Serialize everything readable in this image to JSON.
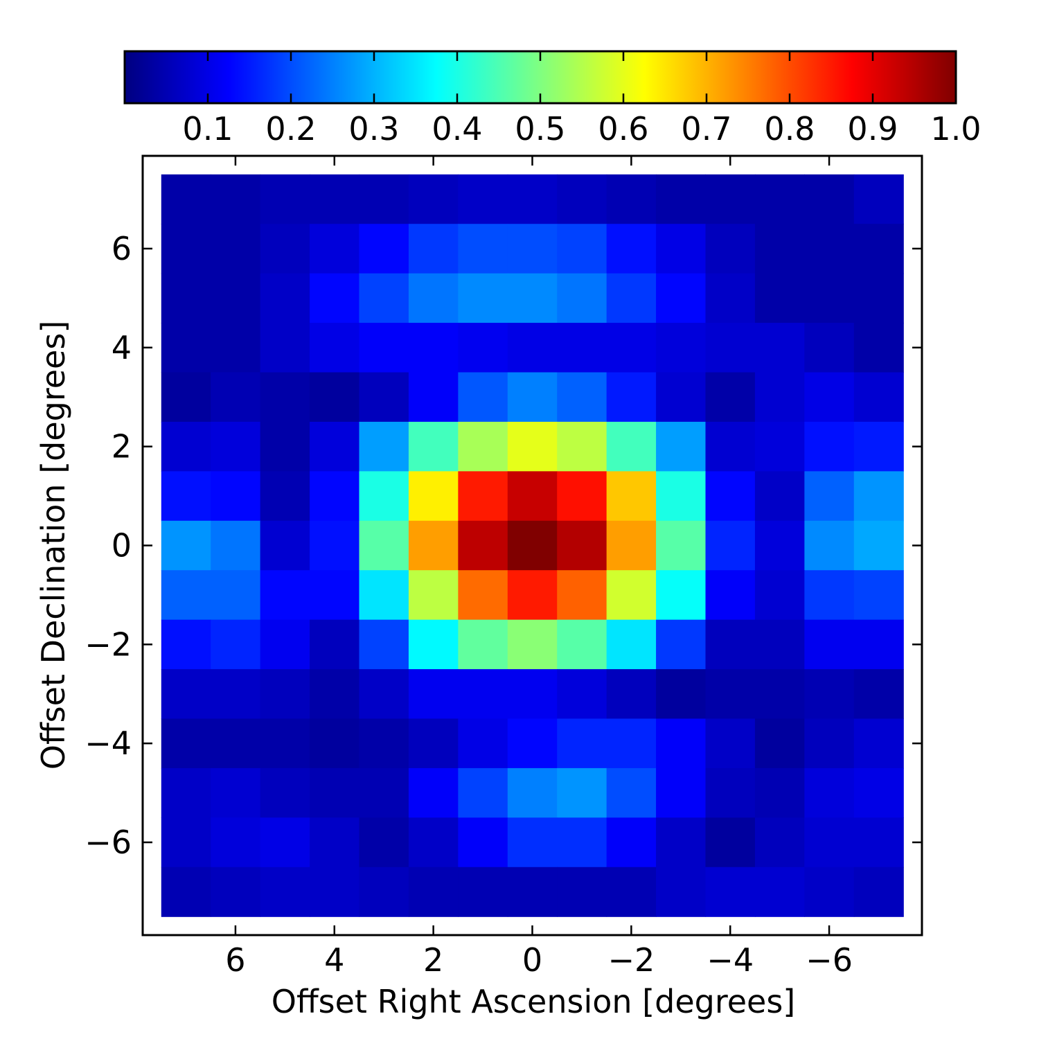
{
  "chart_data": {
    "type": "heatmap",
    "title": "",
    "xlabel": "Offset Right Ascension [degrees]",
    "ylabel": "Offset Declination [degrees]",
    "x_axis_inverted": true,
    "xlim": [
      7.875,
      -7.875
    ],
    "ylim": [
      -7.875,
      7.875
    ],
    "x_ticks": [
      6,
      4,
      2,
      0,
      -2,
      -4,
      -6
    ],
    "x_tick_labels": [
      "6",
      "4",
      "2",
      "0",
      "−2",
      "−4",
      "−6"
    ],
    "y_ticks": [
      6,
      4,
      2,
      0,
      -2,
      -4,
      -6
    ],
    "y_tick_labels": [
      "6",
      "4",
      "2",
      "0",
      "−2",
      "−4",
      "−6"
    ],
    "colormap": "jet",
    "grid": false,
    "colorbar": {
      "orientation": "horizontal",
      "placement": "top",
      "range": [
        0.0,
        1.0
      ],
      "ticks": [
        0.1,
        0.2,
        0.3,
        0.4,
        0.5,
        0.6,
        0.7,
        0.8,
        0.9,
        1.0
      ],
      "tick_labels": [
        "0.1",
        "0.2",
        "0.3",
        "0.4",
        "0.5",
        "0.6",
        "0.7",
        "0.8",
        "0.9",
        "1.0"
      ]
    },
    "x_centers": [
      7,
      6,
      5,
      4,
      3,
      2,
      1,
      0,
      -1,
      -2,
      -3,
      -4,
      -5,
      -6,
      -7
    ],
    "y_centers": [
      7,
      6,
      5,
      4,
      3,
      2,
      1,
      0,
      -1,
      -2,
      -3,
      -4,
      -5,
      -6,
      -7
    ],
    "values": [
      [
        0.04,
        0.04,
        0.05,
        0.05,
        0.05,
        0.06,
        0.07,
        0.07,
        0.06,
        0.05,
        0.04,
        0.04,
        0.04,
        0.04,
        0.06
      ],
      [
        0.04,
        0.04,
        0.06,
        0.09,
        0.13,
        0.18,
        0.2,
        0.2,
        0.19,
        0.14,
        0.1,
        0.06,
        0.04,
        0.04,
        0.04
      ],
      [
        0.04,
        0.04,
        0.07,
        0.13,
        0.19,
        0.24,
        0.26,
        0.26,
        0.24,
        0.18,
        0.13,
        0.07,
        0.04,
        0.04,
        0.04
      ],
      [
        0.04,
        0.04,
        0.07,
        0.1,
        0.12,
        0.12,
        0.11,
        0.1,
        0.1,
        0.1,
        0.09,
        0.08,
        0.08,
        0.06,
        0.04
      ],
      [
        0.03,
        0.05,
        0.04,
        0.03,
        0.06,
        0.12,
        0.21,
        0.25,
        0.22,
        0.15,
        0.08,
        0.04,
        0.08,
        0.1,
        0.08
      ],
      [
        0.08,
        0.09,
        0.04,
        0.09,
        0.28,
        0.44,
        0.54,
        0.6,
        0.56,
        0.44,
        0.28,
        0.08,
        0.09,
        0.14,
        0.15
      ],
      [
        0.14,
        0.13,
        0.05,
        0.13,
        0.4,
        0.64,
        0.85,
        0.93,
        0.86,
        0.68,
        0.4,
        0.13,
        0.07,
        0.22,
        0.27
      ],
      [
        0.27,
        0.24,
        0.08,
        0.14,
        0.46,
        0.72,
        0.94,
        1.0,
        0.95,
        0.72,
        0.46,
        0.16,
        0.09,
        0.26,
        0.29
      ],
      [
        0.22,
        0.22,
        0.13,
        0.13,
        0.35,
        0.56,
        0.77,
        0.85,
        0.78,
        0.58,
        0.38,
        0.12,
        0.08,
        0.18,
        0.19
      ],
      [
        0.14,
        0.16,
        0.11,
        0.06,
        0.19,
        0.37,
        0.47,
        0.51,
        0.46,
        0.35,
        0.18,
        0.06,
        0.06,
        0.11,
        0.11
      ],
      [
        0.07,
        0.07,
        0.06,
        0.04,
        0.07,
        0.11,
        0.11,
        0.11,
        0.09,
        0.06,
        0.03,
        0.04,
        0.04,
        0.05,
        0.04
      ],
      [
        0.04,
        0.04,
        0.04,
        0.03,
        0.04,
        0.06,
        0.1,
        0.13,
        0.16,
        0.16,
        0.12,
        0.07,
        0.03,
        0.06,
        0.08
      ],
      [
        0.07,
        0.08,
        0.06,
        0.05,
        0.05,
        0.12,
        0.19,
        0.25,
        0.27,
        0.2,
        0.12,
        0.06,
        0.05,
        0.09,
        0.1
      ],
      [
        0.07,
        0.09,
        0.1,
        0.07,
        0.04,
        0.07,
        0.12,
        0.17,
        0.17,
        0.12,
        0.07,
        0.03,
        0.06,
        0.08,
        0.08
      ],
      [
        0.05,
        0.06,
        0.07,
        0.07,
        0.06,
        0.05,
        0.05,
        0.05,
        0.05,
        0.05,
        0.07,
        0.08,
        0.08,
        0.07,
        0.06
      ]
    ]
  }
}
